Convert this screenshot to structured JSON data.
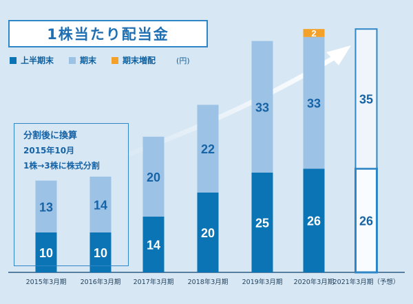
{
  "header": {
    "title": "1株当たり配当金",
    "unit": "(円)"
  },
  "legend": [
    {
      "label": "上半期末",
      "color": "#0b74b5"
    },
    {
      "label": "期末",
      "color": "#9cc2e5"
    },
    {
      "label": "期末増配",
      "color": "#f4a12a"
    }
  ],
  "note": {
    "line1": "分割後に換算",
    "line2": "2015年10月",
    "line3": "1株→3株に株式分割"
  },
  "colors": {
    "background": "#d7e7f4",
    "interim": "#0b74b5",
    "year_end": "#9cc2e5",
    "increase": "#f4a12a",
    "forecast_border": "#2f86c6",
    "arrow": "#ffffff"
  },
  "chart_data": {
    "type": "bar",
    "stacked": true,
    "categories": [
      "2015年3月期",
      "2016年3月期",
      "2017年3月期",
      "2018年3月期",
      "2019年3月期",
      "2020年3月期",
      "2021年3月期（予想）"
    ],
    "series": [
      {
        "name": "上半期末",
        "values": [
          10,
          10,
          14,
          20,
          25,
          26,
          26
        ]
      },
      {
        "name": "期末",
        "values": [
          13,
          14,
          20,
          22,
          33,
          33,
          35
        ]
      },
      {
        "name": "期末増配",
        "values": [
          0,
          0,
          0,
          0,
          0,
          2,
          0
        ]
      }
    ],
    "forecast_category": "2021年3月期（予想）",
    "ylim": [
      0,
      61
    ],
    "grid": false,
    "legend_position": "top-left"
  }
}
